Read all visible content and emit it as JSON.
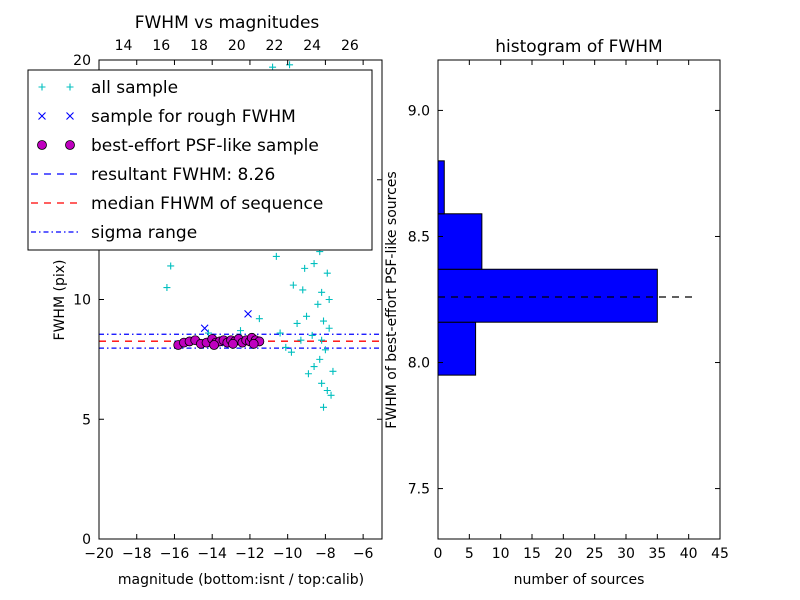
{
  "chart_data": [
    {
      "type": "scatter",
      "title": "FWHM vs magnitudes",
      "xlabel": "magnitude (bottom:isnt / top:calib)",
      "ylabel": "FWHM (pix)",
      "xlim": [
        -20,
        -5
      ],
      "ylim": [
        0,
        20
      ],
      "x_ticks": [
        "−20",
        "−18",
        "−16",
        "−14",
        "−12",
        "−10",
        "−8",
        "−6"
      ],
      "x_tick_values": [
        -20,
        -18,
        -16,
        -14,
        -12,
        -10,
        -8,
        -6
      ],
      "y_ticks": [
        "0",
        "5",
        "10",
        "15",
        "20"
      ],
      "y_tick_values": [
        0,
        5,
        10,
        15,
        20
      ],
      "top_x_ticks": [
        "14",
        "16",
        "18",
        "20",
        "22",
        "24",
        "26"
      ],
      "top_x_tick_positions": [
        -18.7,
        -16.7,
        -14.7,
        -12.7,
        -10.7,
        -8.7,
        -6.7
      ],
      "grid": false,
      "legend_placement": "upper-left",
      "series": [
        {
          "name": "all sample",
          "marker": "plus",
          "color": "#00bfbf",
          "points": [
            [
              -16.4,
              10.5
            ],
            [
              -16.2,
              11.4
            ],
            [
              -14.2,
              8.6
            ],
            [
              -12.5,
              8.7
            ],
            [
              -11.5,
              9.2
            ],
            [
              -10.6,
              11.8
            ],
            [
              -10.9,
              13.5
            ],
            [
              -10.2,
              14.2
            ],
            [
              -9.6,
              15.8
            ],
            [
              -9.0,
              17.2
            ],
            [
              -8.6,
              18.5
            ],
            [
              -9.9,
              19.8
            ],
            [
              -10.8,
              19.7
            ],
            [
              -10.5,
              12.6
            ],
            [
              -9.3,
              12.9
            ],
            [
              -8.8,
              13.4
            ],
            [
              -8.3,
              14.8
            ],
            [
              -8.0,
              13.1
            ],
            [
              -8.5,
              12.2
            ],
            [
              -9.1,
              11.3
            ],
            [
              -9.7,
              10.6
            ],
            [
              -8.2,
              10.3
            ],
            [
              -7.9,
              11.1
            ],
            [
              -8.4,
              9.8
            ],
            [
              -9.0,
              9.3
            ],
            [
              -9.5,
              9.0
            ],
            [
              -8.1,
              9.1
            ],
            [
              -7.8,
              8.8
            ],
            [
              -8.7,
              8.5
            ],
            [
              -9.3,
              8.3
            ],
            [
              -10.4,
              8.6
            ],
            [
              -8.0,
              7.9
            ],
            [
              -8.3,
              7.5
            ],
            [
              -8.6,
              7.2
            ],
            [
              -7.6,
              7.0
            ],
            [
              -8.9,
              6.9
            ],
            [
              -8.2,
              6.5
            ],
            [
              -7.9,
              6.2
            ],
            [
              -8.1,
              5.5
            ],
            [
              -7.7,
              6.0
            ],
            [
              -9.8,
              7.8
            ],
            [
              -10.1,
              8.0
            ],
            [
              -8.4,
              16.1
            ],
            [
              -8.8,
              15.2
            ],
            [
              -9.2,
              14.0
            ],
            [
              -8.0,
              15.6
            ],
            [
              -8.5,
              17.0
            ],
            [
              -9.4,
              16.8
            ],
            [
              -10.0,
              15.3
            ],
            [
              -8.3,
              12.0
            ],
            [
              -7.9,
              12.7
            ],
            [
              -8.6,
              11.5
            ],
            [
              -9.2,
              10.4
            ],
            [
              -7.8,
              10.0
            ],
            [
              -8.2,
              8.3
            ]
          ]
        },
        {
          "name": "sample for rough FWHM",
          "marker": "x",
          "color": "#0000ff",
          "points": [
            [
              -14.4,
              8.8
            ],
            [
              -12.1,
              9.4
            ],
            [
              -14.0,
              8.3
            ],
            [
              -13.3,
              8.2
            ],
            [
              -12.7,
              8.3
            ]
          ]
        },
        {
          "name": "best-effort PSF-like sample",
          "marker": "circle",
          "color": "#bf00bf",
          "points": [
            [
              -15.8,
              8.1
            ],
            [
              -15.5,
              8.2
            ],
            [
              -15.2,
              8.25
            ],
            [
              -14.9,
              8.3
            ],
            [
              -14.6,
              8.15
            ],
            [
              -14.3,
              8.2
            ],
            [
              -14.0,
              8.35
            ],
            [
              -13.8,
              8.2
            ],
            [
              -13.6,
              8.25
            ],
            [
              -13.4,
              8.3
            ],
            [
              -13.2,
              8.2
            ],
            [
              -13.0,
              8.3
            ],
            [
              -12.8,
              8.25
            ],
            [
              -12.6,
              8.35
            ],
            [
              -12.4,
              8.2
            ],
            [
              -12.2,
              8.3
            ],
            [
              -12.0,
              8.25
            ],
            [
              -11.9,
              8.4
            ],
            [
              -11.7,
              8.3
            ],
            [
              -11.5,
              8.25
            ],
            [
              -13.9,
              8.1
            ],
            [
              -12.9,
              8.15
            ],
            [
              -11.8,
              8.15
            ]
          ]
        }
      ],
      "lines": [
        {
          "name": "resultant FWHM: 8.26",
          "y": 8.26,
          "style": "dashed",
          "color": "#0000ff",
          "x_range": [
            -16,
            -11.6
          ]
        },
        {
          "name": "median FHWM of sequence",
          "y": 8.26,
          "style": "dashed",
          "color": "#ff0000",
          "x_range": [
            -20,
            -5
          ]
        },
        {
          "name": "sigma range",
          "y": 8.55,
          "style": "dashdot",
          "color": "#0000ff",
          "x_range": [
            -20,
            -5
          ]
        },
        {
          "name": "",
          "y": 7.97,
          "style": "dashdot",
          "color": "#0000ff",
          "x_range": [
            -20,
            -5
          ]
        }
      ],
      "legend": [
        {
          "label": "all sample",
          "marker": "plus",
          "color": "#00bfbf"
        },
        {
          "label": "sample for rough FWHM",
          "marker": "x",
          "color": "#0000ff"
        },
        {
          "label": "best-effort PSF-like sample",
          "marker": "circle",
          "color": "#bf00bf"
        },
        {
          "label": "resultant FWHM: 8.26",
          "marker": "dashed",
          "color": "#0000ff"
        },
        {
          "label": "median FHWM of sequence",
          "marker": "dashed",
          "color": "#ff0000"
        },
        {
          "label": "sigma range",
          "marker": "dashdot",
          "color": "#0000ff"
        }
      ]
    },
    {
      "type": "bar",
      "orientation": "horizontal",
      "title": "histogram of FWHM",
      "xlabel": "number of sources",
      "ylabel": "FWHM of best-effort PSF-like sources",
      "xlim": [
        0,
        45
      ],
      "ylim": [
        7.3,
        9.2
      ],
      "x_ticks": [
        "0",
        "5",
        "10",
        "15",
        "20",
        "25",
        "30",
        "35",
        "40",
        "45"
      ],
      "x_tick_values": [
        0,
        5,
        10,
        15,
        20,
        25,
        30,
        35,
        40,
        45
      ],
      "y_ticks": [
        "7.5",
        "8.0",
        "8.5",
        "9.0"
      ],
      "y_tick_values": [
        7.5,
        8.0,
        8.5,
        9.0
      ],
      "grid": false,
      "bar_color": "#0000ff",
      "bins": [
        {
          "low": 7.95,
          "high": 8.16,
          "count": 6
        },
        {
          "low": 8.16,
          "high": 8.37,
          "count": 35
        },
        {
          "low": 8.37,
          "high": 8.59,
          "count": 7
        },
        {
          "low": 8.59,
          "high": 8.8,
          "count": 1
        }
      ],
      "reference_line": {
        "y": 8.26,
        "style": "dashed",
        "color": "#000000",
        "x_range": [
          0,
          41
        ]
      }
    }
  ]
}
